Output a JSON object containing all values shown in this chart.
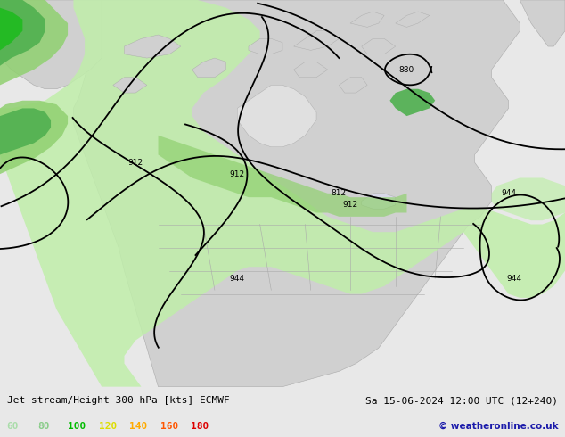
{
  "title_left": "Jet stream/Height 300 hPa [kts] ECMWF",
  "title_right": "Sa 15-06-2024 12:00 UTC (12+240)",
  "copyright": "© weatheronline.co.uk",
  "legend_values": [
    "60",
    "80",
    "100",
    "120",
    "140",
    "160",
    "180"
  ],
  "legend_colors": [
    "#aaddaa",
    "#88cc88",
    "#00bb00",
    "#dddd00",
    "#ffaa00",
    "#ff5500",
    "#dd0000"
  ],
  "bg_color": "#e8e8e8",
  "land_color": "#d0d0d0",
  "ocean_color": "#e8e8e8",
  "green_vlight": "#d8f5d8",
  "green_light": "#c0eeaa",
  "green_mid": "#90d070",
  "green_dark": "#50b050",
  "green_bright": "#22bb22",
  "contour_color": "#000000",
  "border_color": "#999999",
  "bottom_bar_color": "#e0e0e0",
  "figsize": [
    6.34,
    4.9
  ],
  "dpi": 100
}
